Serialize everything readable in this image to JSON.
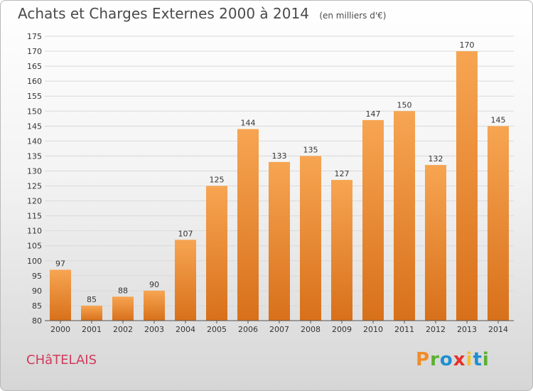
{
  "header": {
    "title": "Achats et Charges Externes 2000 à 2014",
    "unit": "(en milliers d'€)"
  },
  "location": "CHâTELAIS",
  "logo": {
    "letters": [
      "P",
      "r",
      "o",
      "x",
      "i",
      "t",
      "i"
    ],
    "colors": [
      "#f28c28",
      "#5ab031",
      "#1f8fd0",
      "#e4312b",
      "#f2c230",
      "#1f8fd0",
      "#5ab031"
    ]
  },
  "chart_data": {
    "type": "bar",
    "categories": [
      "2000",
      "2001",
      "2002",
      "2003",
      "2004",
      "2005",
      "2006",
      "2007",
      "2008",
      "2009",
      "2010",
      "2011",
      "2012",
      "2013",
      "2014"
    ],
    "values": [
      97,
      85,
      88,
      90,
      107,
      125,
      144,
      133,
      135,
      127,
      147,
      150,
      132,
      170,
      145
    ],
    "ylim": [
      80,
      175
    ],
    "yticks": [
      80,
      85,
      90,
      95,
      100,
      105,
      110,
      115,
      120,
      125,
      130,
      135,
      140,
      145,
      150,
      155,
      160,
      165,
      170,
      175
    ],
    "grid": true,
    "bar_color": "#f0902e"
  }
}
